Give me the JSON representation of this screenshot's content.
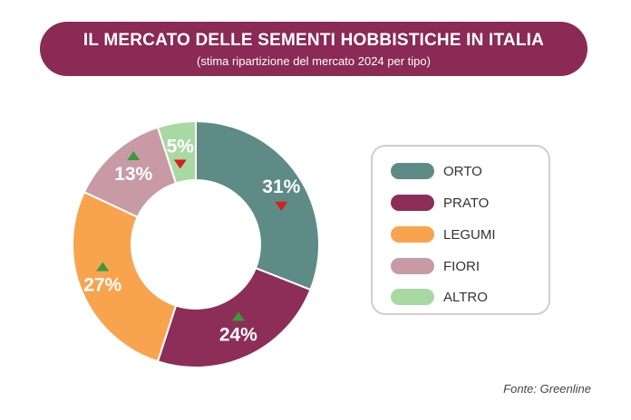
{
  "header": {
    "title": "IL MERCATO DELLE SEMENTI HOBBISTICHE IN ITALIA",
    "subtitle": "(stima ripartizione del mercato 2024 per tipo)"
  },
  "chart_data": {
    "type": "pie",
    "title": "IL MERCATO DELLE SEMENTI HOBBISTICHE IN ITALIA",
    "subtitle": "(stima ripartizione del mercato 2024 per tipo)",
    "categories": [
      "ORTO",
      "PRATO",
      "LEGUMI",
      "FIORI",
      "ALTRO"
    ],
    "values": [
      31,
      24,
      27,
      13,
      5
    ],
    "labels": [
      "31%",
      "24%",
      "27%",
      "13%",
      "5%"
    ],
    "colors": [
      "#5e8b85",
      "#8c2e58",
      "#f8a44f",
      "#c79aa6",
      "#a9d9a2"
    ],
    "trends": [
      "down",
      "up",
      "up",
      "up",
      "down"
    ],
    "trend_colors": {
      "up": "#3a9a3a",
      "down": "#d42020"
    },
    "donut": true,
    "legend_position": "right"
  },
  "legend": {
    "items": [
      {
        "label": "ORTO",
        "color": "#5e8b85"
      },
      {
        "label": "PRATO",
        "color": "#8c2e58"
      },
      {
        "label": "LEGUMI",
        "color": "#f8a44f"
      },
      {
        "label": "FIORI",
        "color": "#c79aa6"
      },
      {
        "label": "ALTRO",
        "color": "#a9d9a2"
      }
    ]
  },
  "source": "Fonte: Greenline"
}
